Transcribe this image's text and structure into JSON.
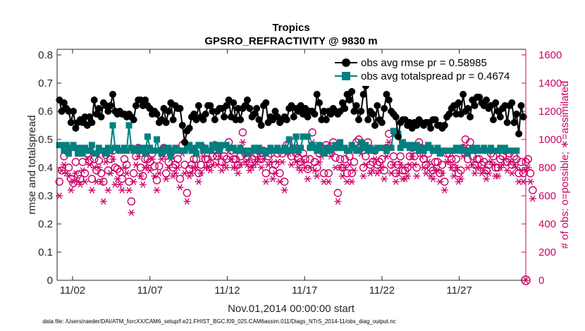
{
  "chart_data": {
    "type": "line",
    "title": "Tropics",
    "subtitle": "GPSRO_REFRACTIVITY @ 9830 m",
    "xlabel": "Nov.01,2014 00:00:00 start",
    "ylabel": "rmse and totalspread",
    "ylabel_right": "# of obs: o=possible; ∗=assimilated",
    "x_tick_labels": [
      "11/02",
      "11/07",
      "11/12",
      "11/17",
      "11/22",
      "11/27"
    ],
    "x_tick_days": [
      2,
      7,
      12,
      17,
      22,
      27
    ],
    "xlim": [
      1.0,
      31.3
    ],
    "ylim": [
      0,
      0.82
    ],
    "ylim_right": [
      0,
      1640
    ],
    "y_ticks": [
      "0",
      "0.1",
      "0.2",
      "0.3",
      "0.4",
      "0.5",
      "0.6",
      "0.7",
      "0.8"
    ],
    "y_ticks_right": [
      "0",
      "200",
      "400",
      "600",
      "800",
      "1000",
      "1200",
      "1400",
      "1600"
    ],
    "legend_position": "top-right",
    "colors": {
      "rmse": "#000000",
      "spread": "#008080",
      "nobs": "#cc0066"
    },
    "series": [
      {
        "name": "obs avg rmse pr = 0.58985",
        "axis": "left",
        "marker": "filled-circle",
        "values": [
          0.64,
          0.6,
          0.63,
          0.61,
          0.6,
          0.56,
          0.6,
          0.54,
          0.56,
          0.57,
          0.56,
          0.58,
          0.55,
          0.58,
          0.56,
          0.64,
          0.59,
          0.61,
          0.58,
          0.63,
          0.62,
          0.6,
          0.62,
          0.66,
          0.6,
          0.59,
          0.6,
          0.59,
          0.59,
          0.58,
          0.59,
          0.58,
          0.57,
          0.62,
          0.64,
          0.64,
          0.62,
          0.64,
          0.62,
          0.61,
          0.59,
          0.6,
          0.59,
          0.56,
          0.57,
          0.61,
          0.56,
          0.6,
          0.63,
          0.57,
          0.62,
          0.61,
          0.61,
          0.55,
          0.49,
          0.53,
          0.54,
          0.58,
          0.59,
          0.57,
          0.62,
          0.58,
          0.57,
          0.59,
          0.62,
          0.62,
          0.6,
          0.57,
          0.6,
          0.61,
          0.61,
          0.58,
          0.62,
          0.64,
          0.58,
          0.63,
          0.57,
          0.61,
          0.57,
          0.61,
          0.62,
          0.64,
          0.61,
          0.58,
          0.59,
          0.61,
          0.57,
          0.55,
          0.62,
          0.63,
          0.56,
          0.58,
          0.57,
          0.6,
          0.58,
          0.56,
          0.57,
          0.58,
          0.57,
          0.61,
          0.62,
          0.58,
          0.61,
          0.6,
          0.62,
          0.59,
          0.61,
          0.58,
          0.6,
          0.6,
          0.59,
          0.66,
          0.63,
          0.57,
          0.6,
          0.57,
          0.6,
          0.59,
          0.61,
          0.6,
          0.59,
          0.6,
          0.63,
          0.61,
          0.66,
          0.64,
          0.67,
          0.6,
          0.62,
          0.57,
          0.6,
          0.66,
          0.69,
          0.57,
          0.6,
          0.59,
          0.55,
          0.62,
          0.57,
          0.56,
          0.61,
          0.66,
          0.64,
          0.6,
          0.59,
          0.58,
          0.51,
          0.56,
          0.57,
          0.57,
          0.55,
          0.56,
          0.54,
          0.56,
          0.55,
          0.57,
          0.56,
          0.55,
          0.56,
          0.56,
          0.54,
          0.57,
          0.57,
          0.55,
          0.55,
          0.54,
          0.55,
          0.58,
          0.59,
          0.61,
          0.62,
          0.59,
          0.63,
          0.59,
          0.66,
          0.6,
          0.61,
          0.58,
          0.64,
          0.62,
          0.65,
          0.65,
          0.63,
          0.62,
          0.64,
          0.61,
          0.62,
          0.57,
          0.63,
          0.6,
          0.58,
          0.61,
          0.62,
          0.56,
          0.62,
          0.63,
          0.56,
          0.59,
          0.52,
          0.62,
          0.58
        ]
      },
      {
        "name": "obs avg totalspread pr = 0.4674",
        "axis": "left",
        "marker": "filled-square",
        "values": [
          0.48,
          0.48,
          0.46,
          0.48,
          0.45,
          0.47,
          0.48,
          0.47,
          0.45,
          0.47,
          0.45,
          0.47,
          0.46,
          0.46,
          0.48,
          0.45,
          0.45,
          0.47,
          0.46,
          0.46,
          0.45,
          0.47,
          0.46,
          0.55,
          0.47,
          0.47,
          0.46,
          0.46,
          0.47,
          0.46,
          0.55,
          0.47,
          0.46,
          0.46,
          0.47,
          0.46,
          0.47,
          0.45,
          0.51,
          0.47,
          0.46,
          0.46,
          0.5,
          0.46,
          0.45,
          0.47,
          0.46,
          0.47,
          0.44,
          0.46,
          0.47,
          0.46,
          0.46,
          0.46,
          0.46,
          0.47,
          0.48,
          0.46,
          0.47,
          0.45,
          0.48,
          0.48,
          0.46,
          0.47,
          0.46,
          0.46,
          0.48,
          0.47,
          0.48,
          0.46,
          0.48,
          0.48,
          0.48,
          0.47,
          0.47,
          0.47,
          0.46,
          0.46,
          0.47,
          0.46,
          0.46,
          0.45,
          0.46,
          0.46,
          0.47,
          0.46,
          0.47,
          0.46,
          0.46,
          0.45,
          0.46,
          0.47,
          0.46,
          0.46,
          0.47,
          0.46,
          0.46,
          0.47,
          0.46,
          0.5,
          0.46,
          0.47,
          0.51,
          0.46,
          0.47,
          0.51,
          0.51,
          0.51,
          0.47,
          0.48,
          0.47,
          0.46,
          0.48,
          0.46,
          0.45,
          0.47,
          0.46,
          0.46,
          0.47,
          0.48,
          0.47,
          0.49,
          0.47,
          0.47,
          0.46,
          0.46,
          0.48,
          0.47,
          0.46,
          0.46,
          0.49,
          0.47,
          0.48,
          0.46,
          0.47,
          0.46,
          0.46,
          0.47,
          0.47,
          0.47,
          0.47,
          0.46,
          0.47,
          0.47,
          0.53,
          0.52,
          0.52,
          0.47,
          0.49,
          0.48,
          0.48,
          0.47,
          0.48,
          0.47,
          0.48,
          0.46,
          0.47,
          0.46,
          0.47,
          0.48,
          0.47,
          0.46,
          0.46,
          0.47,
          0.45,
          0.46,
          0.46,
          0.46,
          0.46,
          0.46,
          0.46,
          0.47,
          0.46,
          0.47,
          0.46,
          0.46,
          0.45,
          0.46,
          0.47,
          0.46,
          0.47,
          0.46,
          0.46,
          0.47,
          0.46,
          0.46,
          0.47,
          0.46,
          0.46,
          0.46,
          0.47,
          0.46,
          0.47,
          0.46,
          0.46,
          0.46,
          0.46,
          0.46
        ]
      },
      {
        "name": "possible",
        "axis": "right",
        "marker": "open-circle",
        "values": [
          700,
          780,
          880,
          920,
          800,
          720,
          690,
          840,
          750,
          720,
          840,
          760,
          900,
          850,
          720,
          860,
          780,
          850,
          760,
          700,
          890,
          780,
          860,
          920,
          800,
          790,
          770,
          720,
          860,
          820,
          700,
          560,
          760,
          880,
          940,
          800,
          740,
          860,
          860,
          840,
          900,
          810,
          710,
          810,
          920,
          940,
          760,
          840,
          900,
          800,
          820,
          860,
          720,
          960,
          820,
          620,
          790,
          820,
          860,
          860,
          760,
          820,
          940,
          860,
          860,
          830,
          880,
          960,
          880,
          940,
          840,
          880,
          860,
          980,
          920,
          860,
          860,
          820,
          880,
          1050,
          900,
          880,
          830,
          860,
          880,
          900,
          920,
          860,
          920,
          760,
          880,
          900,
          780,
          820,
          900,
          760,
          900,
          700,
          960,
          960,
          880,
          980,
          900,
          870,
          840,
          900,
          860,
          790,
          860,
          1050,
          840,
          800,
          900,
          940,
          760,
          960,
          760,
          950,
          980,
          870,
          620,
          860,
          800,
          860,
          760,
          880,
          760,
          840,
          980,
          1000,
          960,
          800,
          880,
          980,
          820,
          840,
          920,
          820,
          840,
          860,
          780,
          940,
          1040,
          820,
          880,
          760,
          820,
          880,
          780,
          780,
          800,
          880,
          940,
          880,
          800,
          980,
          940,
          860,
          820,
          900,
          800,
          780,
          840,
          840,
          760,
          820,
          700,
          900,
          900,
          860,
          800,
          860,
          760,
          780,
          940,
          1000,
          860,
          980,
          880,
          820,
          860,
          860,
          820,
          840,
          780,
          820,
          900,
          880,
          800,
          800,
          860,
          880,
          920,
          840,
          900,
          820,
          880,
          860,
          760,
          840,
          760,
          840,
          860,
          760,
          640
        ]
      },
      {
        "name": "assimilated",
        "axis": "right",
        "marker": "asterisk",
        "values": [
          600,
          780,
          820,
          760,
          740,
          640,
          700,
          760,
          700,
          680,
          780,
          700,
          860,
          820,
          640,
          800,
          700,
          800,
          700,
          560,
          840,
          640,
          760,
          860,
          680,
          720,
          680,
          640,
          800,
          760,
          640,
          480,
          700,
          820,
          880,
          740,
          680,
          800,
          800,
          780,
          860,
          740,
          640,
          760,
          860,
          880,
          720,
          800,
          860,
          740,
          760,
          800,
          660,
          900,
          760,
          560,
          740,
          760,
          800,
          800,
          700,
          760,
          880,
          800,
          800,
          780,
          820,
          900,
          820,
          880,
          780,
          820,
          800,
          920,
          860,
          800,
          800,
          760,
          820,
          980,
          840,
          820,
          780,
          800,
          820,
          840,
          860,
          800,
          860,
          700,
          820,
          840,
          720,
          760,
          840,
          700,
          840,
          640,
          900,
          900,
          820,
          920,
          840,
          800,
          780,
          840,
          800,
          720,
          800,
          980,
          780,
          740,
          840,
          880,
          700,
          900,
          700,
          880,
          920,
          800,
          560,
          800,
          740,
          800,
          700,
          820,
          700,
          780,
          920,
          940,
          900,
          740,
          820,
          920,
          760,
          780,
          860,
          760,
          780,
          800,
          720,
          880,
          980,
          760,
          820,
          700,
          760,
          820,
          720,
          720,
          740,
          820,
          880,
          820,
          740,
          920,
          880,
          800,
          760,
          840,
          740,
          720,
          780,
          780,
          700,
          760,
          640,
          840,
          840,
          800,
          740,
          800,
          700,
          720,
          880,
          940,
          800,
          920,
          820,
          760,
          800,
          800,
          760,
          780,
          720,
          760,
          840,
          820,
          740,
          740,
          800,
          820,
          860,
          780,
          840,
          760,
          820,
          800,
          700,
          780,
          700,
          780,
          800,
          700,
          580
        ]
      }
    ]
  },
  "footer": {
    "datafile": "data file: /Users/raeder/DAI/ATM_forcXX/CAM6_setup/f.e21.FHIST_BGC.f09_025.CAM6assim.011/Diags_NTrS_2014-11/obs_diag_output.nc"
  }
}
